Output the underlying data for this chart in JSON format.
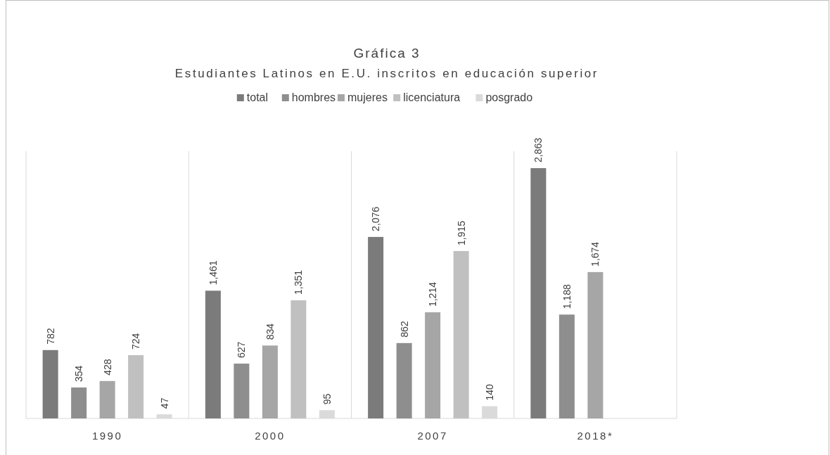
{
  "chart_data": {
    "type": "bar",
    "title": "Gráfica 3",
    "subtitle": "Estudiantes Latinos en E.U. inscritos en educación superior",
    "categories": [
      "1990",
      "2000",
      "2007",
      "2018*"
    ],
    "series": [
      {
        "name": "total",
        "color": "#7b7b7b",
        "values": [
          782,
          1461,
          2076,
          2863
        ],
        "value_labels": [
          "782",
          "1,461",
          "2,076",
          "2,863"
        ]
      },
      {
        "name": "hombres",
        "color": "#8e8e8e",
        "values": [
          354,
          627,
          862,
          1188
        ],
        "value_labels": [
          "354",
          "627",
          "862",
          "1,188"
        ]
      },
      {
        "name": "mujeres",
        "color": "#a6a6a6",
        "values": [
          428,
          834,
          1214,
          1674
        ],
        "value_labels": [
          "428",
          "834",
          "1,214",
          "1,674"
        ]
      },
      {
        "name": "licenciatura",
        "color": "#c0c0c0",
        "values": [
          724,
          1351,
          1915,
          null
        ],
        "value_labels": [
          "724",
          "1,351",
          "1,915",
          null
        ]
      },
      {
        "name": "posgrado",
        "color": "#dadada",
        "values": [
          47,
          95,
          140,
          null
        ],
        "value_labels": [
          "47",
          "95",
          "140",
          null
        ]
      }
    ],
    "legend": "top"
  }
}
